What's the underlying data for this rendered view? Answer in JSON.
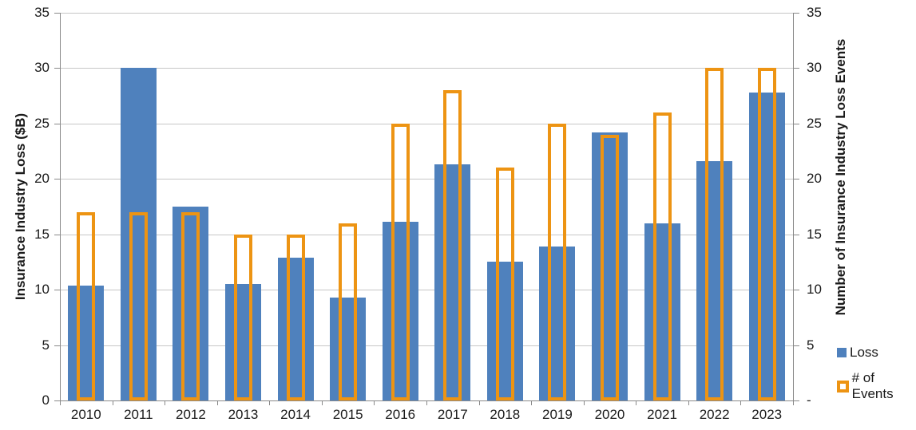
{
  "chart_data": {
    "type": "bar",
    "title": "",
    "categories": [
      "2010",
      "2011",
      "2012",
      "2013",
      "2014",
      "2015",
      "2016",
      "2017",
      "2018",
      "2019",
      "2020",
      "2021",
      "2022",
      "2023"
    ],
    "series": [
      {
        "name": "Loss",
        "axis": "left",
        "style": "filled",
        "values": [
          10.4,
          30,
          17.5,
          10.5,
          12.9,
          9.3,
          16.1,
          21.3,
          12.5,
          13.9,
          24.2,
          16,
          21.6,
          27.8
        ]
      },
      {
        "name": "# of Events",
        "axis": "right",
        "style": "outline",
        "values": [
          17,
          17,
          17,
          15,
          15,
          16,
          25,
          28,
          21,
          25,
          24,
          26,
          30,
          30
        ]
      }
    ],
    "y_left": {
      "label": "Insurance Industry Loss ($B)",
      "min": 0,
      "max": 35,
      "tick_interval": 5,
      "tick_labels_bottom_to_top": [
        "0",
        "5",
        "10",
        "15",
        "20",
        "25",
        "30",
        "35"
      ]
    },
    "y_right": {
      "label": "Number of Insurance Industry Loss Events",
      "min": 0,
      "max": 35,
      "tick_interval": 5,
      "tick_labels_bottom_to_top": [
        "-",
        "5",
        "10",
        "15",
        "20",
        "25",
        "30",
        "35"
      ]
    },
    "grid": true,
    "legend": {
      "position": "right",
      "entries": [
        "Loss",
        "# of Events"
      ]
    },
    "colors": {
      "loss_fill": "#4F81BD",
      "events_outline": "#ED9413",
      "gridline": "#C6C6C6",
      "axis": "#898989",
      "text": "#1A1A1A"
    }
  }
}
